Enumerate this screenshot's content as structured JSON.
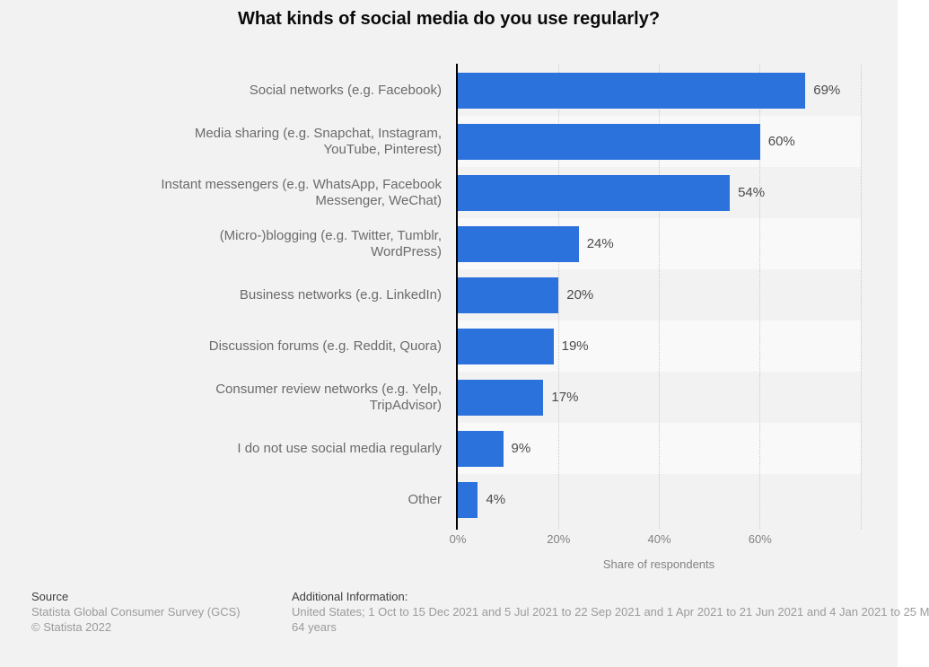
{
  "title": "What kinds of social media do you use regularly?",
  "chart_data": {
    "type": "bar",
    "orientation": "horizontal",
    "title": "What kinds of social media do you use regularly?",
    "categories": [
      "Social networks (e.g. Facebook)",
      "Media sharing (e.g. Snapchat, Instagram, YouTube, Pinterest)",
      "Instant messengers (e.g. WhatsApp, Facebook Messenger, WeChat)",
      "(Micro-)blogging (e.g. Twitter, Tumblr, WordPress)",
      "Business networks (e.g. LinkedIn)",
      "Discussion forums (e.g. Reddit, Quora)",
      "Consumer review networks (e.g. Yelp, TripAdvisor)",
      "I do not use social media regularly",
      "Other"
    ],
    "category_lines": [
      [
        "Social networks (e.g. Facebook)"
      ],
      [
        "Media sharing (e.g. Snapchat, Instagram,",
        "YouTube, Pinterest)"
      ],
      [
        "Instant messengers (e.g. WhatsApp, Facebook",
        "Messenger, WeChat)"
      ],
      [
        "(Micro-)blogging (e.g. Twitter, Tumblr,",
        "WordPress)"
      ],
      [
        "Business networks (e.g. LinkedIn)"
      ],
      [
        "Discussion forums (e.g. Reddit, Quora)"
      ],
      [
        "Consumer review networks (e.g. Yelp,",
        "TripAdvisor)"
      ],
      [
        "I do not use social media regularly"
      ],
      [
        "Other"
      ]
    ],
    "values": [
      69,
      60,
      54,
      24,
      20,
      19,
      17,
      9,
      4
    ],
    "value_labels": [
      "69%",
      "60%",
      "54%",
      "24%",
      "20%",
      "19%",
      "17%",
      "9%",
      "4%"
    ],
    "xlabel": "Share of respondents",
    "x_tick_values": [
      0,
      20,
      40,
      60
    ],
    "x_tick_labels": [
      "0%",
      "20%",
      "40%",
      "60%"
    ],
    "x_grid_values": [
      20,
      40,
      60,
      80
    ],
    "xlim": [
      0,
      80
    ],
    "grid": "vertical-dotted",
    "legend": "none"
  },
  "footer": {
    "source_heading": "Source",
    "source_lines": [
      "Statista Global Consumer Survey (GCS)",
      "© Statista 2022"
    ],
    "additional_heading": "Additional Information:",
    "additional_lines": [
      "United States; 1 Oct to 15 Dec 2021 and 5 Jul 2021 to 22 Sep 2021 and 1 Apr 2021 to 21 Jun 2021 and 4 Jan 2021 to 25 M",
      "64 years"
    ]
  },
  "colors": {
    "background": "#f2f2f2",
    "row_band_alt": "#f9f9f9",
    "bar": "#2c72dd",
    "axis": "#000000",
    "gridline": "#c9c9c9",
    "category_label": "#6b6b6b",
    "value_label": "#4b4b4b",
    "tick_label": "#828282",
    "footer_heading": "#3d3d3d",
    "footer_text": "#9b9b9b",
    "title": "#0a0a0a"
  }
}
